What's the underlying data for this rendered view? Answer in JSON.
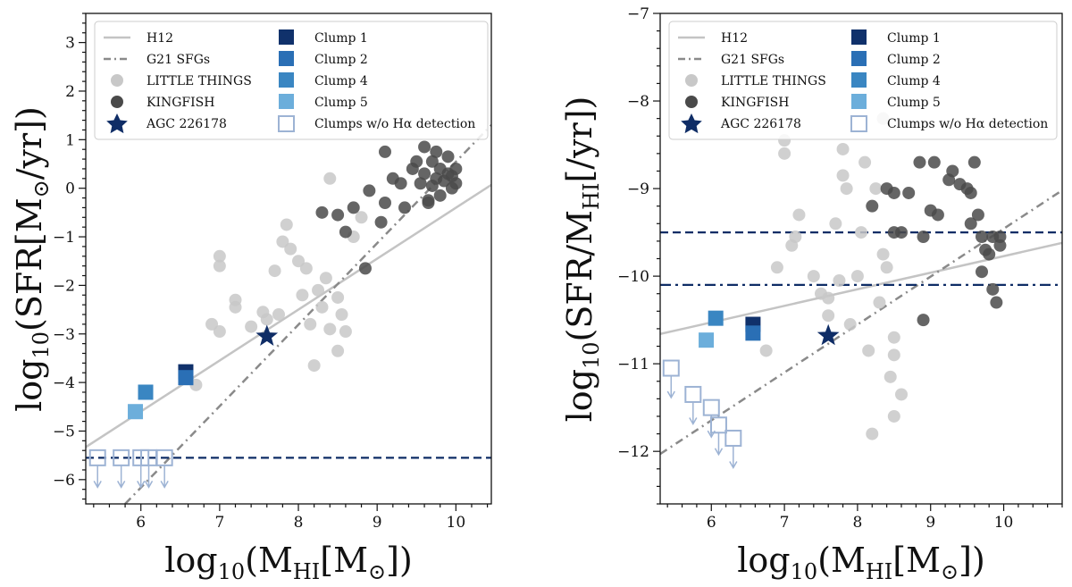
{
  "chart_data": [
    {
      "type": "scatter",
      "title": "",
      "xlabel": "log10(MHI[M☉])",
      "ylabel": "log10(SFR[M☉/yr])",
      "xlim": [
        5.3,
        10.45
      ],
      "ylim": [
        -6.5,
        3.6
      ],
      "xticks": [
        6,
        7,
        8,
        9,
        10
      ],
      "yticks": [
        -6,
        -5,
        -4,
        -3,
        -2,
        -1,
        0,
        1,
        2,
        3
      ],
      "xtick_labels": [
        "6",
        "7",
        "8",
        "9",
        "10"
      ],
      "ytick_labels": [
        "−6",
        "−5",
        "−4",
        "−3",
        "−2",
        "−1",
        "0",
        "1",
        "2",
        "3"
      ],
      "lines": {
        "h12": {
          "name": "H12",
          "x": [
            5.3,
            10.45
          ],
          "y": [
            -5.33,
            0.07
          ]
        },
        "g21": {
          "name": "G21 SFGs",
          "x": [
            5.8,
            10.45
          ],
          "y": [
            -6.5,
            1.3
          ]
        },
        "hline": {
          "y": -5.55,
          "style": "dashed"
        }
      },
      "little_things": [
        [
          7.0,
          -1.4
        ],
        [
          7.0,
          -1.6
        ],
        [
          6.9,
          -2.8
        ],
        [
          7.0,
          -2.95
        ],
        [
          7.2,
          -2.3
        ],
        [
          7.2,
          -2.45
        ],
        [
          7.4,
          -2.85
        ],
        [
          7.55,
          -2.55
        ],
        [
          7.6,
          -2.7
        ],
        [
          7.7,
          -1.7
        ],
        [
          7.8,
          -1.1
        ],
        [
          7.85,
          -0.75
        ],
        [
          7.9,
          -1.25
        ],
        [
          7.75,
          -2.6
        ],
        [
          8.0,
          -1.5
        ],
        [
          8.05,
          -2.2
        ],
        [
          8.1,
          -1.65
        ],
        [
          8.15,
          -2.8
        ],
        [
          8.2,
          -3.65
        ],
        [
          8.25,
          -2.1
        ],
        [
          8.3,
          -2.45
        ],
        [
          8.35,
          -1.85
        ],
        [
          8.4,
          0.2
        ],
        [
          8.4,
          -2.9
        ],
        [
          8.5,
          -3.35
        ],
        [
          8.5,
          -2.25
        ],
        [
          8.55,
          -2.6
        ],
        [
          8.7,
          -1.0
        ],
        [
          8.8,
          -0.6
        ],
        [
          8.6,
          -2.95
        ],
        [
          6.7,
          -4.05
        ]
      ],
      "kingfish": [
        [
          8.3,
          -0.5
        ],
        [
          8.5,
          -0.55
        ],
        [
          8.6,
          -0.9
        ],
        [
          8.7,
          -0.4
        ],
        [
          8.9,
          -0.05
        ],
        [
          9.1,
          -0.3
        ],
        [
          9.2,
          0.2
        ],
        [
          9.3,
          0.1
        ],
        [
          9.35,
          -0.4
        ],
        [
          9.45,
          0.4
        ],
        [
          9.5,
          0.55
        ],
        [
          9.55,
          0.1
        ],
        [
          9.6,
          0.85
        ],
        [
          9.6,
          0.3
        ],
        [
          9.65,
          -0.25
        ],
        [
          9.7,
          0.55
        ],
        [
          9.7,
          0.05
        ],
        [
          9.75,
          0.2
        ],
        [
          9.8,
          0.4
        ],
        [
          9.8,
          -0.15
        ],
        [
          9.85,
          0.15
        ],
        [
          9.9,
          0.65
        ],
        [
          9.9,
          0.3
        ],
        [
          9.95,
          0.0
        ],
        [
          10.0,
          0.4
        ],
        [
          10.0,
          0.1
        ],
        [
          9.75,
          0.75
        ],
        [
          9.1,
          0.75
        ],
        [
          9.05,
          -0.7
        ],
        [
          8.85,
          -1.65
        ],
        [
          9.65,
          -0.3
        ],
        [
          9.95,
          0.25
        ]
      ],
      "star": {
        "name": "AGC 226178",
        "x": 7.6,
        "y": -3.05
      },
      "clumps": [
        {
          "name": "Clump 1",
          "x": 6.57,
          "y": -3.78,
          "color": "#10316b"
        },
        {
          "name": "Clump 2",
          "x": 6.57,
          "y": -3.9,
          "color": "#2a6fb5"
        },
        {
          "name": "Clump 4",
          "x": 6.06,
          "y": -4.2,
          "color": "#3a86c2"
        },
        {
          "name": "Clump 5",
          "x": 5.93,
          "y": -4.6,
          "color": "#6caedb"
        }
      ],
      "upper_limits": [
        [
          5.45,
          -5.55
        ],
        [
          5.75,
          -5.55
        ],
        [
          6.0,
          -5.55
        ],
        [
          6.1,
          -5.55
        ],
        [
          6.3,
          -5.55
        ]
      ]
    },
    {
      "type": "scatter",
      "title": "",
      "xlabel": "log10(MHI[M☉])",
      "ylabel": "log10(SFR/MHI[/yr])",
      "xlim": [
        5.3,
        10.8
      ],
      "ylim": [
        -12.6,
        -7.0
      ],
      "xticks": [
        6,
        7,
        8,
        9,
        10
      ],
      "yticks": [
        -12,
        -11,
        -10,
        -9,
        -8,
        -7
      ],
      "xtick_labels": [
        "6",
        "7",
        "8",
        "9",
        "10"
      ],
      "ytick_labels": [
        "−12",
        "−11",
        "−10",
        "−9",
        "−8",
        "−7"
      ],
      "lines": {
        "h12": {
          "name": "H12",
          "x": [
            5.3,
            10.8
          ],
          "y": [
            -10.66,
            -9.62
          ]
        },
        "g21": {
          "name": "G21 SFGs",
          "x": [
            5.3,
            10.8
          ],
          "y": [
            -12.03,
            -9.02
          ]
        },
        "hline_dashed": {
          "y": -9.5,
          "style": "dashed"
        },
        "hline_dashdot": {
          "y": -10.1,
          "style": "dashdot"
        }
      },
      "little_things": [
        [
          7.0,
          -8.45
        ],
        [
          7.0,
          -8.6
        ],
        [
          7.1,
          -9.65
        ],
        [
          6.9,
          -9.9
        ],
        [
          7.2,
          -9.3
        ],
        [
          7.15,
          -9.55
        ],
        [
          7.4,
          -10.0
        ],
        [
          7.5,
          -10.2
        ],
        [
          7.6,
          -10.25
        ],
        [
          7.6,
          -10.45
        ],
        [
          7.7,
          -9.4
        ],
        [
          7.75,
          -10.05
        ],
        [
          7.8,
          -8.55
        ],
        [
          7.8,
          -8.85
        ],
        [
          7.85,
          -9.0
        ],
        [
          7.9,
          -10.55
        ],
        [
          8.0,
          -10.0
        ],
        [
          8.05,
          -9.5
        ],
        [
          8.1,
          -8.7
        ],
        [
          8.15,
          -10.85
        ],
        [
          8.2,
          -11.8
        ],
        [
          8.25,
          -9.0
        ],
        [
          8.3,
          -10.3
        ],
        [
          8.35,
          -9.75
        ],
        [
          8.4,
          -9.9
        ],
        [
          8.45,
          -11.15
        ],
        [
          8.5,
          -10.7
        ],
        [
          8.5,
          -10.9
        ],
        [
          8.5,
          -11.6
        ],
        [
          8.6,
          -11.35
        ],
        [
          6.75,
          -10.85
        ],
        [
          8.35,
          -8.2
        ]
      ],
      "kingfish": [
        [
          8.2,
          -9.2
        ],
        [
          8.4,
          -9.0
        ],
        [
          8.5,
          -9.05
        ],
        [
          8.6,
          -9.5
        ],
        [
          8.7,
          -9.05
        ],
        [
          8.85,
          -8.7
        ],
        [
          8.9,
          -9.55
        ],
        [
          9.0,
          -9.25
        ],
        [
          9.05,
          -8.7
        ],
        [
          9.1,
          -9.3
        ],
        [
          9.25,
          -8.9
        ],
        [
          9.3,
          -8.8
        ],
        [
          9.4,
          -8.95
        ],
        [
          9.5,
          -9.0
        ],
        [
          9.55,
          -9.4
        ],
        [
          9.6,
          -8.7
        ],
        [
          9.65,
          -9.3
        ],
        [
          9.7,
          -9.95
        ],
        [
          9.75,
          -9.7
        ],
        [
          9.8,
          -9.75
        ],
        [
          9.85,
          -10.15
        ],
        [
          9.85,
          -9.55
        ],
        [
          9.9,
          -10.3
        ],
        [
          9.95,
          -9.65
        ],
        [
          9.95,
          -9.55
        ],
        [
          8.9,
          -10.5
        ],
        [
          9.55,
          -9.05
        ],
        [
          8.5,
          -9.5
        ],
        [
          9.7,
          -9.55
        ]
      ],
      "star": {
        "name": "AGC 226178",
        "x": 7.6,
        "y": -10.68
      },
      "clumps": [
        {
          "name": "Clump 1",
          "x": 6.57,
          "y": -10.55,
          "color": "#10316b"
        },
        {
          "name": "Clump 2",
          "x": 6.57,
          "y": -10.65,
          "color": "#2a6fb5"
        },
        {
          "name": "Clump 4",
          "x": 6.06,
          "y": -10.48,
          "color": "#3a86c2"
        },
        {
          "name": "Clump 5",
          "x": 5.93,
          "y": -10.73,
          "color": "#6caedb"
        }
      ],
      "upper_limits": [
        [
          5.45,
          -11.05
        ],
        [
          5.75,
          -11.35
        ],
        [
          6.0,
          -11.5
        ],
        [
          6.1,
          -11.7
        ],
        [
          6.3,
          -11.85
        ]
      ]
    }
  ],
  "legend": {
    "h12": "H12",
    "g21": "G21 SFGs",
    "little_things": "LITTLE THINGS",
    "kingfish": "KINGFISH",
    "star": "AGC 226178",
    "clump1": "Clump 1",
    "clump2": "Clump 2",
    "clump4": "Clump 4",
    "clump5": "Clump 5",
    "nodet": "Clumps w/o Hα detection"
  },
  "colors": {
    "little_things": "#c8c8c8",
    "kingfish": "#4a4a4a",
    "h12": "#c4c4c4",
    "g21": "#8a8a8a",
    "navy": "#0f2d66",
    "upper_limit": "#9db3d4"
  }
}
